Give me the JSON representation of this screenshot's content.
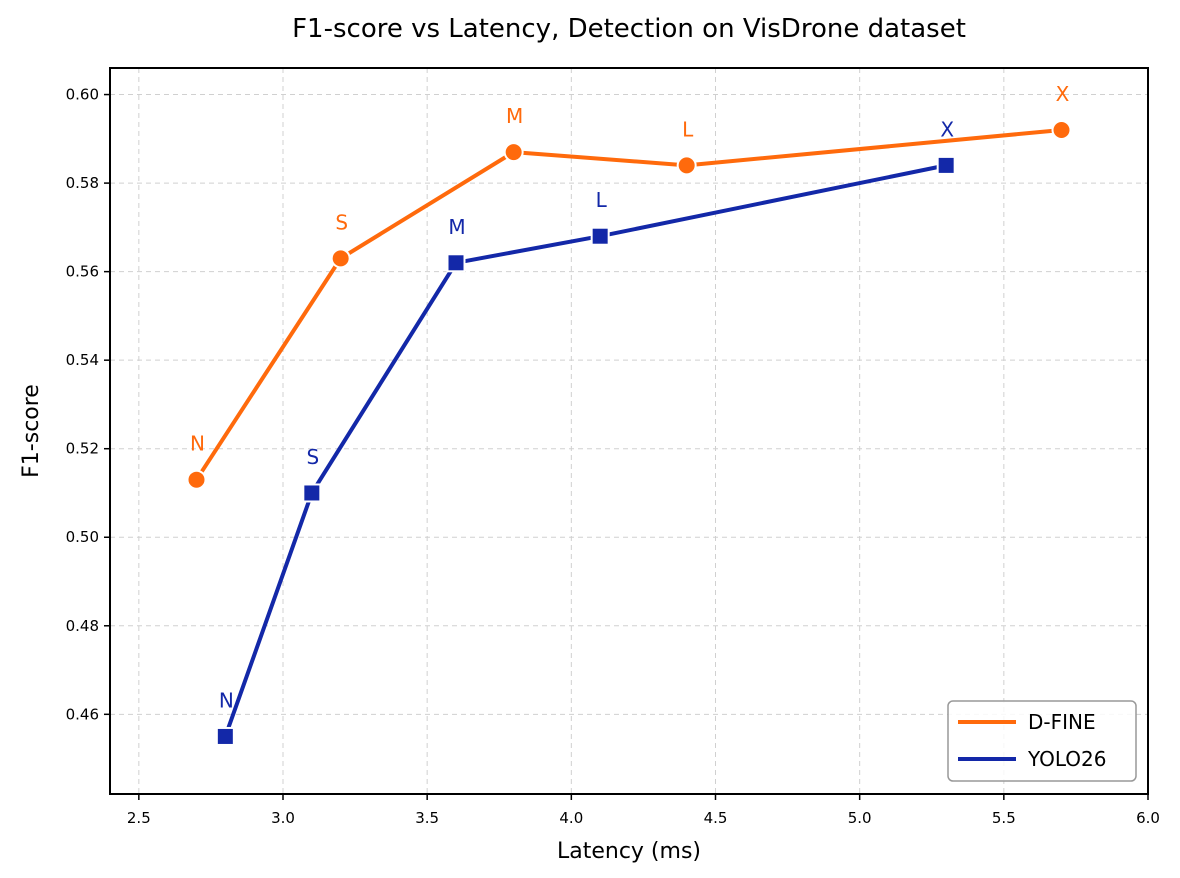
{
  "chart_data": {
    "type": "line",
    "title": "F1-score vs Latency, Detection on VisDrone dataset",
    "xlabel": "Latency (ms)",
    "ylabel": "F1-score",
    "xlim": [
      2.4,
      6.0
    ],
    "ylim": [
      0.442,
      0.606
    ],
    "xticks": [
      "2.5",
      "3.0",
      "3.5",
      "4.0",
      "4.5",
      "5.0",
      "5.5",
      "6.0"
    ],
    "yticks": [
      "0.46",
      "0.48",
      "0.50",
      "0.52",
      "0.54",
      "0.56",
      "0.58",
      "0.60"
    ],
    "grid": true,
    "legend_position": "bottom-right",
    "series": [
      {
        "name": "D-FINE",
        "color": "#ff6a0c",
        "marker": "circle",
        "points": [
          {
            "label": "N",
            "x": 2.7,
            "y": 0.513
          },
          {
            "label": "S",
            "x": 3.2,
            "y": 0.563
          },
          {
            "label": "M",
            "x": 3.8,
            "y": 0.587
          },
          {
            "label": "L",
            "x": 4.4,
            "y": 0.584
          },
          {
            "label": "X",
            "x": 5.7,
            "y": 0.592
          }
        ]
      },
      {
        "name": "YOLO26",
        "color": "#1328a8",
        "marker": "square",
        "points": [
          {
            "label": "N",
            "x": 2.8,
            "y": 0.455
          },
          {
            "label": "S",
            "x": 3.1,
            "y": 0.51
          },
          {
            "label": "M",
            "x": 3.6,
            "y": 0.562
          },
          {
            "label": "L",
            "x": 4.1,
            "y": 0.568
          },
          {
            "label": "X",
            "x": 5.3,
            "y": 0.584
          }
        ]
      }
    ]
  }
}
